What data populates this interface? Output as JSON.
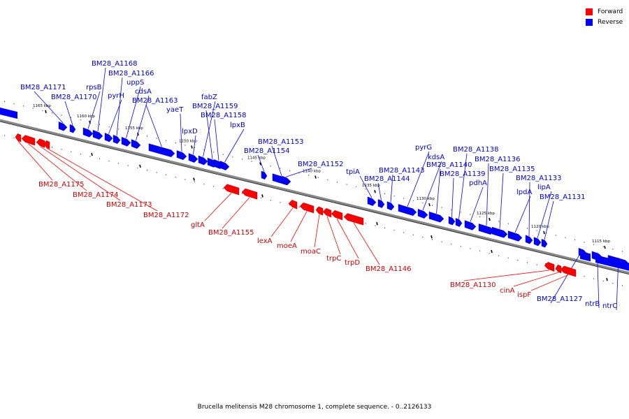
{
  "colors": {
    "forward": "#ff0000",
    "reverse": "#0000ff",
    "backbone": "#888888"
  },
  "legend": [
    {
      "label": "Forward",
      "strand": "forward"
    },
    {
      "label": "Reverse",
      "strand": "reverse"
    }
  ],
  "caption": "Brucella melitensis M28 chromosome 1, complete sequence. - 0..2126133",
  "scale_labels": [
    "1165 kbp",
    "1160 kbp",
    "1155 kbp",
    "1150 kbp",
    "1145 kbp",
    "1140 kbp",
    "1135 kbp",
    "1130 kbp",
    "1125 kbp",
    "1120 kbp",
    "1115 kbp"
  ],
  "genes": [
    {
      "name": "BM28_A1171",
      "strand": "reverse"
    },
    {
      "name": "BM28_A1170",
      "strand": "reverse"
    },
    {
      "name": "rpsB",
      "strand": "reverse"
    },
    {
      "name": "BM28_A1168",
      "strand": "reverse"
    },
    {
      "name": "pyrH",
      "strand": "reverse"
    },
    {
      "name": "BM28_A1166",
      "strand": "reverse"
    },
    {
      "name": "uppS",
      "strand": "reverse"
    },
    {
      "name": "cdsA",
      "strand": "reverse"
    },
    {
      "name": "BM28_A1163",
      "strand": "reverse"
    },
    {
      "name": "yaeT",
      "strand": "reverse"
    },
    {
      "name": "lpxD",
      "strand": "reverse"
    },
    {
      "name": "fabZ",
      "strand": "reverse"
    },
    {
      "name": "BM28_A1159",
      "strand": "reverse"
    },
    {
      "name": "BM28_A1158",
      "strand": "reverse"
    },
    {
      "name": "lpxB",
      "strand": "reverse"
    },
    {
      "name": "BM28_A1154",
      "strand": "reverse"
    },
    {
      "name": "BM28_A1153",
      "strand": "reverse"
    },
    {
      "name": "BM28_A1152",
      "strand": "reverse"
    },
    {
      "name": "tpiA",
      "strand": "reverse"
    },
    {
      "name": "BM28_A1144",
      "strand": "reverse"
    },
    {
      "name": "BM28_A1143",
      "strand": "reverse"
    },
    {
      "name": "pyrG",
      "strand": "reverse"
    },
    {
      "name": "kdsA",
      "strand": "reverse"
    },
    {
      "name": "BM28_A1140",
      "strand": "reverse"
    },
    {
      "name": "BM28_A1139",
      "strand": "reverse"
    },
    {
      "name": "BM28_A1138",
      "strand": "reverse"
    },
    {
      "name": "pdhA",
      "strand": "reverse"
    },
    {
      "name": "BM28_A1136",
      "strand": "reverse"
    },
    {
      "name": "BM28_A1135",
      "strand": "reverse"
    },
    {
      "name": "lpdA",
      "strand": "reverse"
    },
    {
      "name": "BM28_A1133",
      "strand": "reverse"
    },
    {
      "name": "lipA",
      "strand": "reverse"
    },
    {
      "name": "BM28_A1131",
      "strand": "reverse"
    },
    {
      "name": "BM28_A1127",
      "strand": "reverse"
    },
    {
      "name": "ntrB",
      "strand": "reverse"
    },
    {
      "name": "ntrC",
      "strand": "reverse"
    },
    {
      "name": "BM28_A1175",
      "strand": "forward"
    },
    {
      "name": "BM28_A1174",
      "strand": "forward"
    },
    {
      "name": "BM28_A1173",
      "strand": "forward"
    },
    {
      "name": "BM28_A1172",
      "strand": "forward"
    },
    {
      "name": "gltA",
      "strand": "forward"
    },
    {
      "name": "BM28_A1155",
      "strand": "forward"
    },
    {
      "name": "lexA",
      "strand": "forward"
    },
    {
      "name": "moeA",
      "strand": "forward"
    },
    {
      "name": "moaC",
      "strand": "forward"
    },
    {
      "name": "trpC",
      "strand": "forward"
    },
    {
      "name": "trpD",
      "strand": "forward"
    },
    {
      "name": "BM28_A1146",
      "strand": "forward"
    },
    {
      "name": "BM28_A1130",
      "strand": "forward"
    },
    {
      "name": "cinA",
      "strand": "forward"
    },
    {
      "name": "ispF",
      "strand": "forward"
    }
  ]
}
